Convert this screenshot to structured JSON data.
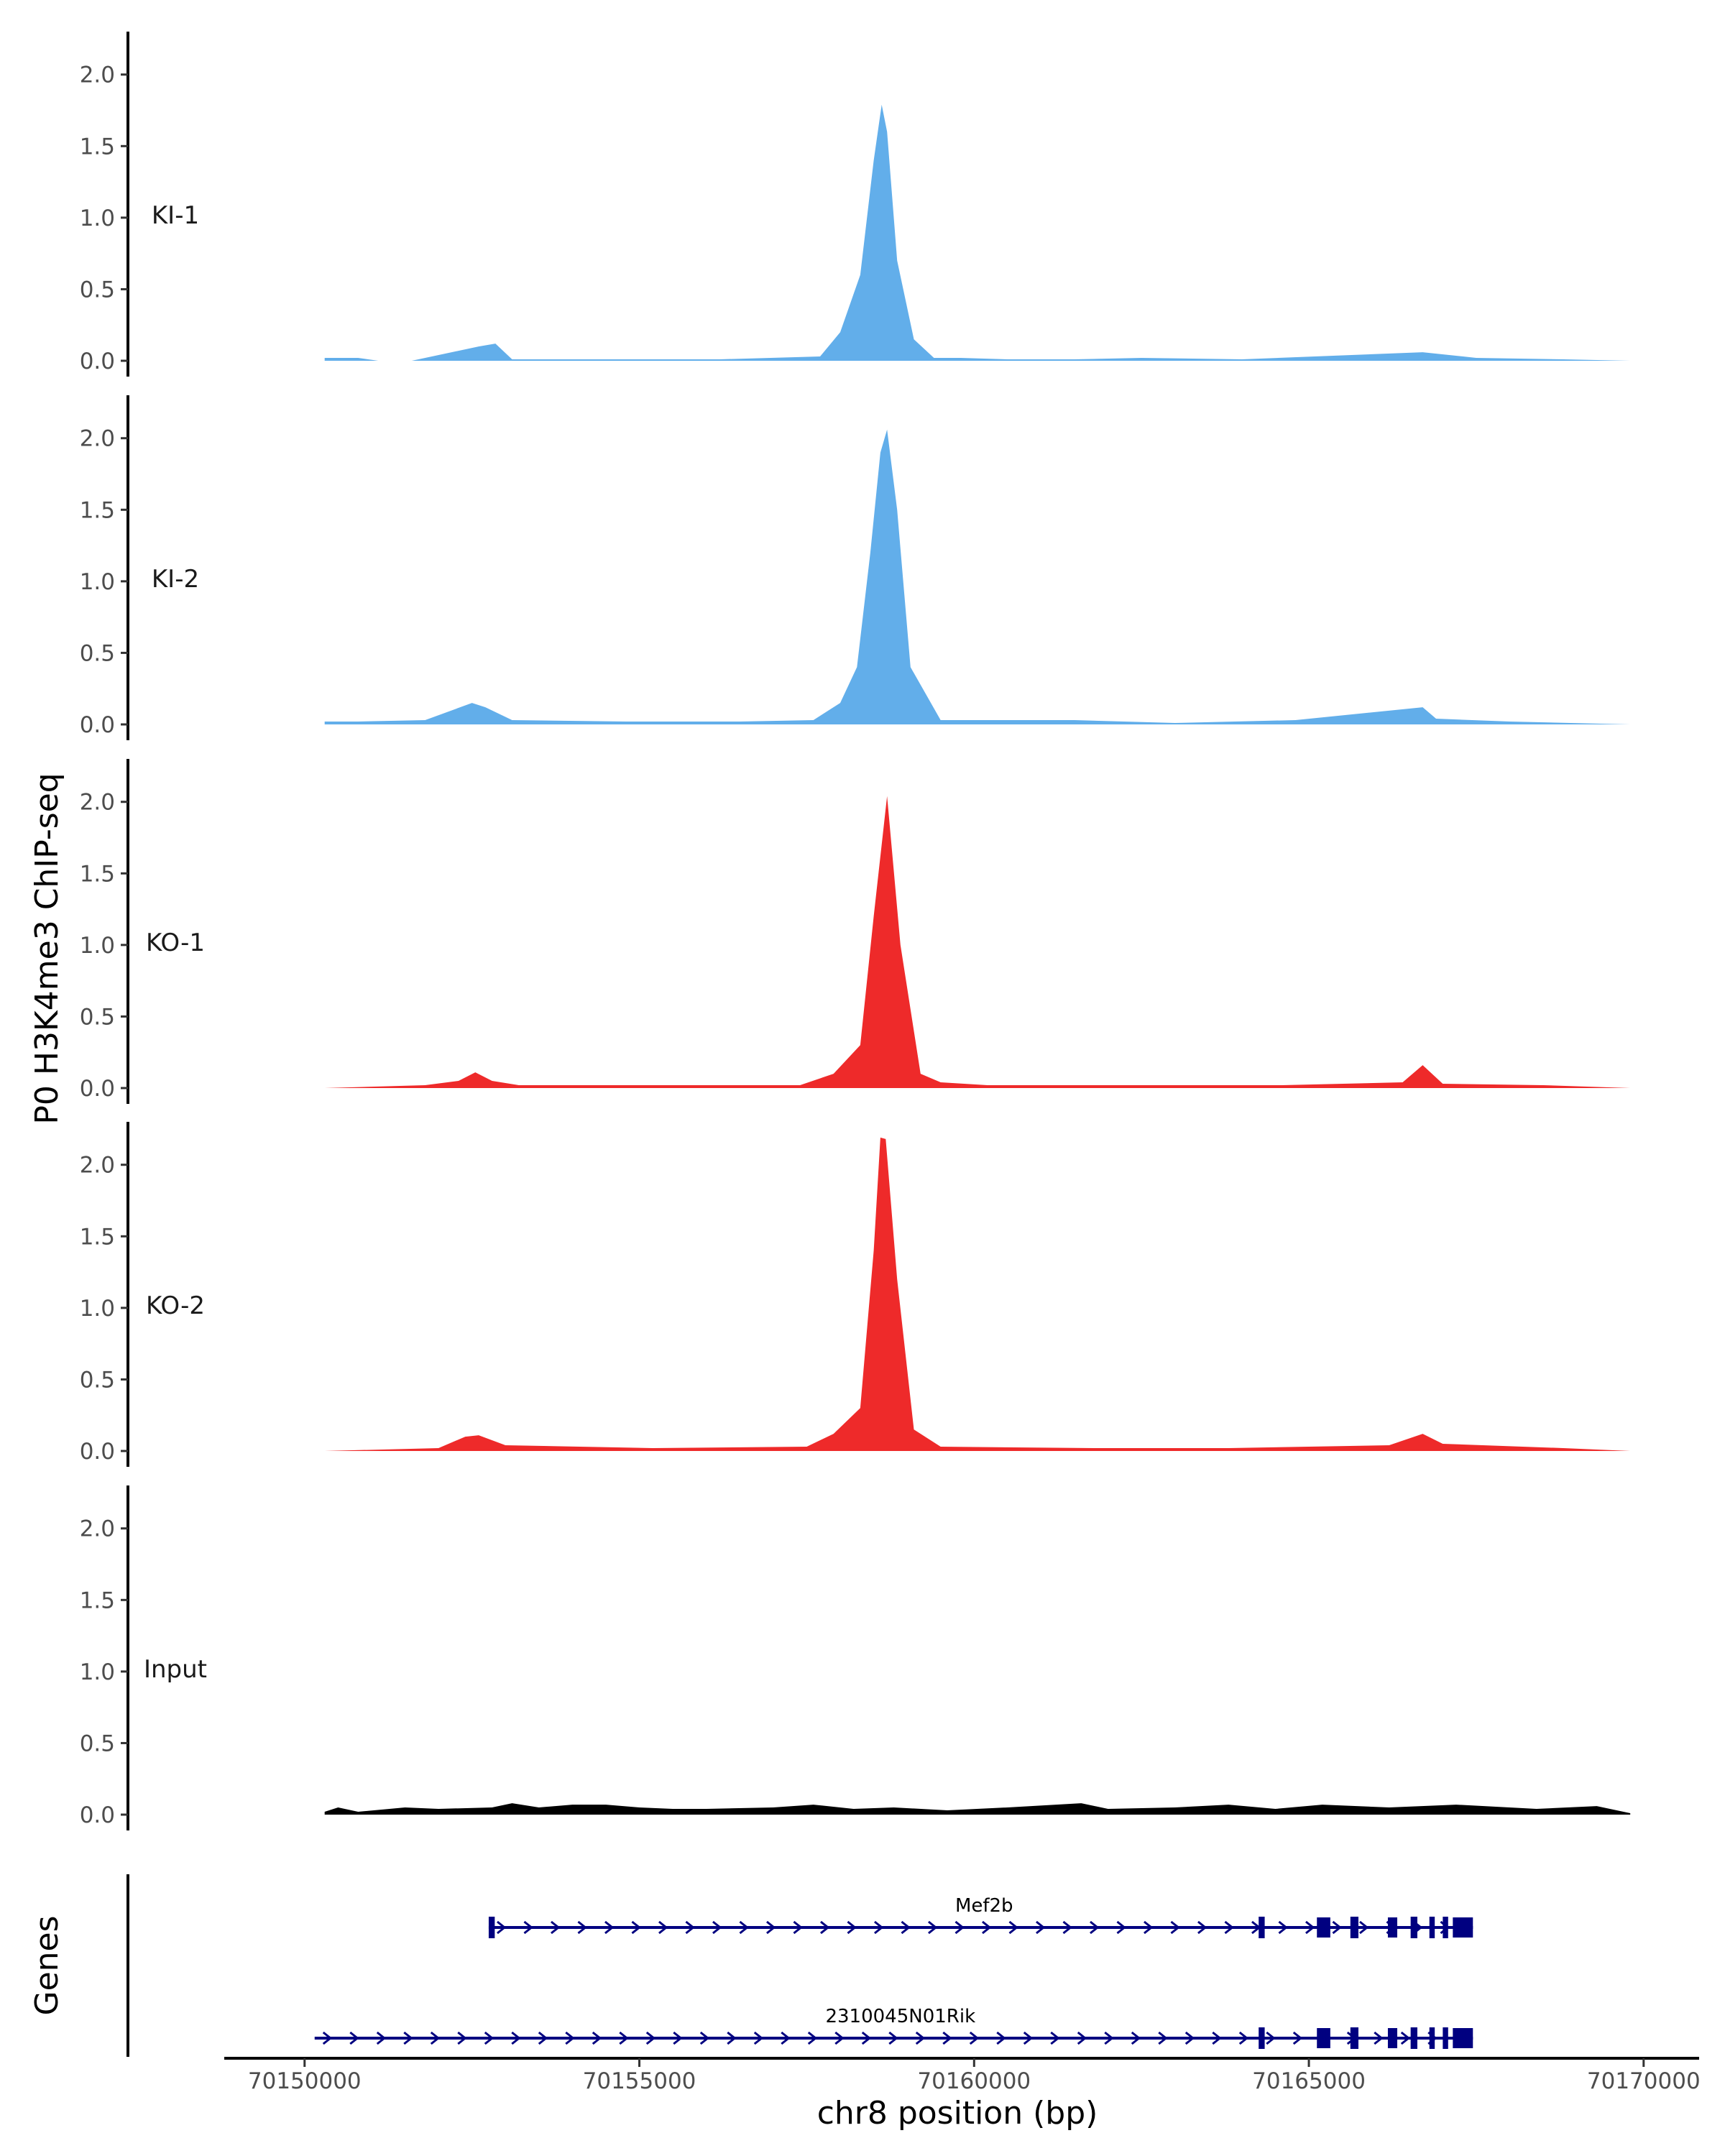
{
  "chart_data": {
    "type": "area",
    "ylabel": "P0 H3K4me3 ChIP-seq",
    "xlabel": "chr8 position (bp)",
    "genes_label": "Genes",
    "xlim": [
      70148800,
      70170700
    ],
    "ylim": [
      0,
      2.3
    ],
    "y_ticks": [
      0.0,
      0.5,
      1.0,
      1.5,
      2.0
    ],
    "y_tick_labels": [
      "0.0",
      "0.5",
      "1.0",
      "1.5",
      "2.0"
    ],
    "x_ticks": [
      70150000,
      70155000,
      70160000,
      70165000,
      70170000
    ],
    "x_tick_labels": [
      "70150000",
      "70155000",
      "70160000",
      "70165000",
      "70170000"
    ],
    "grid": false,
    "tracks": [
      {
        "name": "KI-1",
        "color": "#62aeea",
        "x": [
          70150300,
          70150800,
          70151100,
          70151600,
          70152600,
          70152850,
          70153100,
          70154800,
          70156200,
          70157700,
          70158000,
          70158300,
          70158500,
          70158620,
          70158700,
          70158850,
          70159100,
          70159400,
          70159800,
          70160500,
          70161500,
          70162500,
          70164000,
          70166700,
          70167500,
          70168800,
          70169800
        ],
        "y": [
          0.02,
          0.02,
          0.0,
          0.0,
          0.1,
          0.12,
          0.01,
          0.01,
          0.01,
          0.03,
          0.2,
          0.6,
          1.4,
          1.79,
          1.6,
          0.7,
          0.15,
          0.02,
          0.02,
          0.01,
          0.01,
          0.02,
          0.01,
          0.06,
          0.02,
          0.01,
          0.0
        ]
      },
      {
        "name": "KI-2",
        "color": "#62aeea",
        "x": [
          70150300,
          70150800,
          70151800,
          70152500,
          70152700,
          70153100,
          70154800,
          70156500,
          70157600,
          70158000,
          70158250,
          70158450,
          70158600,
          70158700,
          70158850,
          70159050,
          70159500,
          70161500,
          70163000,
          70164800,
          70166700,
          70166900,
          70168000,
          70169800
        ],
        "y": [
          0.02,
          0.02,
          0.03,
          0.15,
          0.12,
          0.03,
          0.02,
          0.02,
          0.03,
          0.15,
          0.4,
          1.2,
          1.9,
          2.06,
          1.5,
          0.4,
          0.03,
          0.03,
          0.01,
          0.03,
          0.12,
          0.04,
          0.02,
          0.0
        ]
      },
      {
        "name": "KO-1",
        "color": "#ee2a2a",
        "x": [
          70150300,
          70151800,
          70152300,
          70152550,
          70152800,
          70153200,
          70155000,
          70157400,
          70157900,
          70158300,
          70158500,
          70158700,
          70158900,
          70159200,
          70159500,
          70160200,
          70162500,
          70164600,
          70166400,
          70166700,
          70167000,
          70168500,
          70169800
        ],
        "y": [
          0.0,
          0.02,
          0.05,
          0.11,
          0.05,
          0.02,
          0.02,
          0.02,
          0.1,
          0.3,
          1.2,
          2.04,
          1.0,
          0.1,
          0.04,
          0.02,
          0.02,
          0.02,
          0.04,
          0.16,
          0.03,
          0.02,
          0.0
        ]
      },
      {
        "name": "KO-2",
        "color": "#ee2a2a",
        "x": [
          70150300,
          70152000,
          70152400,
          70152600,
          70153000,
          70155200,
          70157500,
          70157900,
          70158300,
          70158500,
          70158600,
          70158680,
          70158850,
          70159100,
          70159500,
          70161800,
          70163800,
          70166200,
          70166700,
          70167000,
          70168800,
          70169800
        ],
        "y": [
          0.0,
          0.02,
          0.1,
          0.11,
          0.04,
          0.02,
          0.03,
          0.12,
          0.3,
          1.4,
          2.19,
          2.18,
          1.2,
          0.15,
          0.03,
          0.02,
          0.02,
          0.04,
          0.12,
          0.05,
          0.02,
          0.0
        ]
      },
      {
        "name": "Input",
        "color": "#000000",
        "x": [
          70150300,
          70150500,
          70150800,
          70151500,
          70152000,
          70152800,
          70153100,
          70153500,
          70154000,
          70154500,
          70155000,
          70155500,
          70156000,
          70157000,
          70157600,
          70158200,
          70158800,
          70159600,
          70160500,
          70161600,
          70162000,
          70163000,
          70163800,
          70164500,
          70165200,
          70166200,
          70167200,
          70168400,
          70169300,
          70169800
        ],
        "y": [
          0.02,
          0.05,
          0.02,
          0.05,
          0.04,
          0.05,
          0.08,
          0.05,
          0.07,
          0.07,
          0.05,
          0.04,
          0.04,
          0.05,
          0.07,
          0.04,
          0.05,
          0.03,
          0.05,
          0.08,
          0.04,
          0.05,
          0.07,
          0.04,
          0.07,
          0.05,
          0.07,
          0.04,
          0.06,
          0.01
        ]
      }
    ],
    "genes": [
      {
        "name": "Mef2b",
        "start": 70152750,
        "end": 70167450,
        "exons": [
          [
            70152750,
            70152840
          ],
          [
            70164250,
            70164340
          ],
          [
            70165120,
            70165320
          ],
          [
            70165620,
            70165740
          ],
          [
            70166180,
            70166320
          ],
          [
            70166520,
            70166620
          ],
          [
            70166800,
            70166880
          ],
          [
            70167000,
            70167080
          ],
          [
            70167150,
            70167450
          ]
        ]
      },
      {
        "name": "2310045N01Rik",
        "start": 70150150,
        "end": 70167450,
        "exons": [
          [
            70164250,
            70164340
          ],
          [
            70165120,
            70165320
          ],
          [
            70165620,
            70165740
          ],
          [
            70166180,
            70166320
          ],
          [
            70166520,
            70166620
          ],
          [
            70166800,
            70166880
          ],
          [
            70167000,
            70167080
          ],
          [
            70167150,
            70167450
          ]
        ]
      }
    ],
    "gene_color": "#000080"
  }
}
